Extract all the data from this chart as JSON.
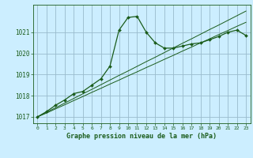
{
  "title": "Graphe pression niveau de la mer (hPa)",
  "background_color": "#cceeff",
  "grid_color": "#99bbcc",
  "line_color": "#1a5c1a",
  "x_values": [
    0,
    1,
    2,
    3,
    4,
    5,
    6,
    7,
    8,
    9,
    10,
    11,
    12,
    13,
    14,
    15,
    16,
    17,
    18,
    19,
    20,
    21,
    22,
    23
  ],
  "y_main": [
    1017.0,
    1017.25,
    1017.55,
    1017.8,
    1018.1,
    1018.2,
    1018.5,
    1018.8,
    1019.4,
    1021.1,
    1021.7,
    1021.75,
    1021.0,
    1020.5,
    1020.25,
    1020.25,
    1020.35,
    1020.45,
    1020.5,
    1020.65,
    1020.8,
    1021.0,
    1021.1,
    1020.85
  ],
  "y_linear1": [
    1017.0,
    1017.18,
    1017.38,
    1017.57,
    1017.77,
    1017.96,
    1018.16,
    1018.35,
    1018.55,
    1018.74,
    1018.94,
    1019.13,
    1019.33,
    1019.52,
    1019.72,
    1019.91,
    1020.11,
    1020.3,
    1020.5,
    1020.69,
    1020.89,
    1021.08,
    1021.28,
    1021.47
  ],
  "y_linear2": [
    1017.0,
    1017.22,
    1017.43,
    1017.65,
    1017.87,
    1018.09,
    1018.3,
    1018.52,
    1018.74,
    1018.96,
    1019.17,
    1019.39,
    1019.61,
    1019.82,
    1020.04,
    1020.26,
    1020.48,
    1020.69,
    1020.91,
    1021.13,
    1021.34,
    1021.56,
    1021.78,
    1022.0
  ],
  "ylim": [
    1016.7,
    1022.3
  ],
  "xlim": [
    -0.5,
    23.5
  ],
  "yticks": [
    1017,
    1018,
    1019,
    1020,
    1021
  ],
  "xticks": [
    0,
    1,
    2,
    3,
    4,
    5,
    6,
    7,
    8,
    9,
    10,
    11,
    12,
    13,
    14,
    15,
    16,
    17,
    18,
    19,
    20,
    21,
    22,
    23
  ]
}
